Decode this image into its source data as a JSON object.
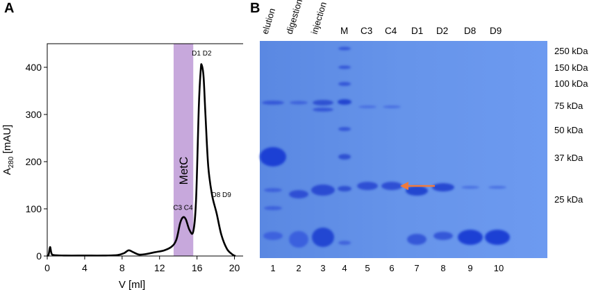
{
  "panel_a": {
    "letter": "A",
    "chart_data": {
      "type": "line",
      "title": "",
      "xlabel": "V [ml]",
      "ylabel_main": "A",
      "ylabel_sub": "280",
      "ylabel_unit": " [mAU]",
      "xlim": [
        0,
        21
      ],
      "ylim": [
        0,
        450
      ],
      "xticks": [
        0,
        4,
        8,
        12,
        16,
        20
      ],
      "yticks": [
        0,
        100,
        200,
        300,
        400
      ],
      "grid": false,
      "series": [
        {
          "color": "#000000",
          "points": [
            [
              0,
              0
            ],
            [
              0.15,
              3
            ],
            [
              0.3,
              19
            ],
            [
              0.45,
              6
            ],
            [
              0.7,
              2
            ],
            [
              2,
              1
            ],
            [
              4,
              1
            ],
            [
              6,
              1
            ],
            [
              7.5,
              2
            ],
            [
              8.2,
              6
            ],
            [
              8.7,
              12
            ],
            [
              9.2,
              8
            ],
            [
              9.8,
              3
            ],
            [
              10.5,
              4
            ],
            [
              11.5,
              8
            ],
            [
              12.5,
              12
            ],
            [
              13.3,
              20
            ],
            [
              13.8,
              35
            ],
            [
              14.2,
              70
            ],
            [
              14.5,
              82
            ],
            [
              14.8,
              78
            ],
            [
              15.2,
              55
            ],
            [
              15.6,
              52
            ],
            [
              15.9,
              120
            ],
            [
              16.2,
              320
            ],
            [
              16.4,
              395
            ],
            [
              16.5,
              405
            ],
            [
              16.7,
              380
            ],
            [
              16.9,
              300
            ],
            [
              17.2,
              190
            ],
            [
              17.6,
              130
            ],
            [
              18.1,
              90
            ],
            [
              18.6,
              45
            ],
            [
              19.2,
              15
            ],
            [
              19.8,
              3
            ],
            [
              20.1,
              0
            ]
          ]
        }
      ],
      "shaded_region": {
        "label": "MetC",
        "x_range": [
          13.5,
          15.6
        ],
        "color": "#c7a8dc"
      },
      "annotations": [
        {
          "text": "D1 D2",
          "x": 16.5,
          "y": 425
        },
        {
          "text": "C3 C4",
          "x": 14.5,
          "y": 98
        },
        {
          "text": "D8 D9",
          "x": 18.6,
          "y": 125
        }
      ]
    }
  },
  "panel_b": {
    "letter": "B",
    "lane_labels": [
      "elution",
      "digestion",
      "injection",
      "M",
      "C3",
      "C4",
      "D1",
      "D2",
      "D8",
      "D9"
    ],
    "lane_numbers": [
      "1",
      "2",
      "3",
      "4",
      "5",
      "6",
      "7",
      "8",
      "9",
      "10"
    ],
    "marker_labels": [
      "250 kDa",
      "150 kDa",
      "100 kDa",
      "75 kDa",
      "50 kDa",
      "37 kDa",
      "25 kDa"
    ],
    "gel_color": "#5f8ee6",
    "band_color": "#1f3fd0",
    "arrow_color": "#f07a3c"
  }
}
